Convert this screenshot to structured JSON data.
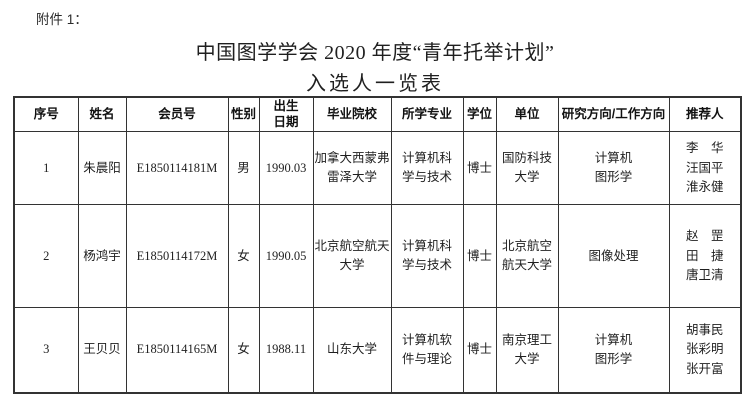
{
  "document": {
    "attachment_label": "附件 1：",
    "title": "中国图学学会 2020 年度“青年托举计划”",
    "subtitle": "入选人一览表"
  },
  "table": {
    "headers": {
      "index": "序号",
      "name": "姓名",
      "member_id": "会员号",
      "gender": "性别",
      "birth_date": "出生\n日期",
      "school": "毕业院校",
      "major": "所学专业",
      "degree": "学位",
      "organization": "单位",
      "direction": "研究方向/工作方向",
      "recommenders": "推荐人"
    },
    "rows": [
      {
        "index": "1",
        "name": "朱晨阳",
        "member_id": "E1850114181M",
        "gender": "男",
        "birth_date": "1990.03",
        "school": "加拿大西蒙弗\n雷泽大学",
        "major": "计算机科\n学与技术",
        "degree": "博士",
        "organization": "国防科技\n大学",
        "direction": "计算机\n图形学",
        "recommenders": "李　华\n汪国平\n淮永健"
      },
      {
        "index": "2",
        "name": "杨鸿宇",
        "member_id": "E1850114172M",
        "gender": "女",
        "birth_date": "1990.05",
        "school": "北京航空航天\n大学",
        "major": "计算机科\n学与技术",
        "degree": "博士",
        "organization": "北京航空\n航天大学",
        "direction": "图像处理",
        "recommenders": "赵　罡\n田　捷\n唐卫清"
      },
      {
        "index": "3",
        "name": "王贝贝",
        "member_id": "E1850114165M",
        "gender": "女",
        "birth_date": "1988.11",
        "school": "山东大学",
        "major": "计算机软\n件与理论",
        "degree": "博士",
        "organization": "南京理工\n大学",
        "direction": "计算机\n图形学",
        "recommenders": "胡事民\n张彩明\n张开富"
      }
    ]
  },
  "colors": {
    "text": "#1f1f1f",
    "border": "#333333",
    "background": "#ffffff"
  }
}
